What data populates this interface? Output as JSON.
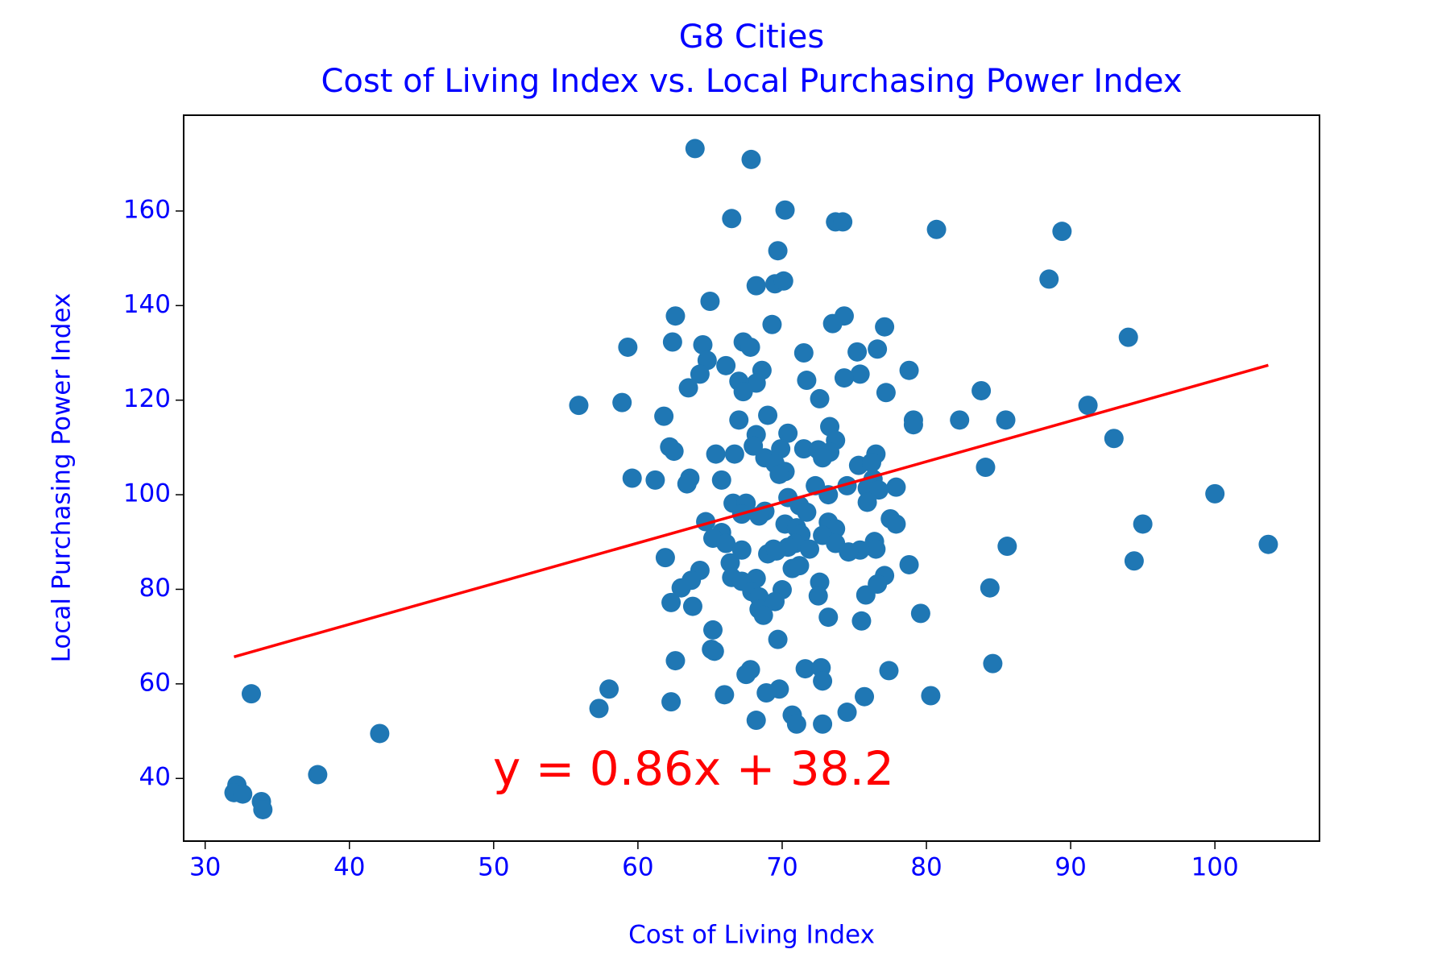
{
  "chart_data": {
    "type": "scatter",
    "title": "G8 Cities",
    "subtitle": "Cost of Living Index vs. Local Purchasing Power Index",
    "x_label": "Cost of Living Index",
    "y_label": "Local Purchasing Power Index",
    "color": "#1f77b4",
    "text_color": "blue",
    "x": [
      63.96,
      67.85,
      66.5,
      70.2,
      73.7,
      74.2,
      80.7,
      89.4,
      69.7,
      68.2,
      69.5,
      70.1,
      88.5,
      65.0,
      62.6,
      74.3,
      73.5,
      69.3,
      77.1,
      94.0,
      62.4,
      64.5,
      67.3,
      67.8,
      59.3,
      75.2,
      75.4,
      76.6,
      71.5,
      64.8,
      64.3,
      66.1,
      78.8,
      68.6,
      68.2,
      67.0,
      71.7,
      74.3,
      63.5,
      67.3,
      77.2,
      83.8,
      72.6,
      55.9,
      58.9,
      91.2,
      61.8,
      69.0,
      67.0,
      82.3,
      85.5,
      79.1,
      79.1,
      73.3,
      70.4,
      68.2,
      93.0,
      73.7,
      62.2,
      62.5,
      68.0,
      71.5,
      72.5,
      73.3,
      69.9,
      65.4,
      66.7,
      72.8,
      76.5,
      68.8,
      69.5,
      75.3,
      76.2,
      84.1,
      70.2,
      69.8,
      59.6,
      61.2,
      63.6,
      63.4,
      65.8,
      76.3,
      74.5,
      75.9,
      77.9,
      76.7,
      73.2,
      72.3,
      100.0,
      70.4,
      71.2,
      71.7,
      66.6,
      67.5,
      75.9,
      68.8,
      67.2,
      68.4,
      64.7,
      77.5,
      77.9,
      73.2,
      73.7,
      70.2,
      71.0,
      95.0,
      65.8,
      65.2,
      66.1,
      71.3,
      70.9,
      72.8,
      73.7,
      76.4,
      76.5,
      75.4,
      69.4,
      70.4,
      85.6,
      103.7,
      67.2,
      71.9,
      74.6,
      69.0,
      69.6,
      61.9,
      94.4,
      66.4,
      78.8,
      70.7,
      71.2,
      64.3,
      63.7,
      68.2,
      66.5,
      67.2,
      72.6,
      77.1,
      76.6,
      63.0,
      84.4,
      70.0,
      67.9,
      68.4,
      72.5,
      75.8,
      62.3,
      69.5,
      63.8,
      68.4,
      68.7,
      79.6,
      73.2,
      75.5,
      65.2,
      69.7,
      65.1,
      65.3,
      62.6,
      84.6,
      67.8,
      67.5,
      71.6,
      72.7,
      77.4,
      72.8,
      58.0,
      33.2,
      69.8,
      68.9,
      66.0,
      75.7,
      80.3,
      62.3,
      57.3,
      74.5,
      70.7,
      71.0,
      68.2,
      72.8,
      42.1,
      37.8,
      32.2,
      32.0,
      32.6,
      33.9,
      34.0
    ],
    "values": [
      173.2,
      170.9,
      158.4,
      160.2,
      157.7,
      157.7,
      156.1,
      155.7,
      151.6,
      144.2,
      144.6,
      145.2,
      145.6,
      140.9,
      137.8,
      137.8,
      136.2,
      136.0,
      135.5,
      133.3,
      132.3,
      131.7,
      132.3,
      131.2,
      131.2,
      130.2,
      125.5,
      130.8,
      130.0,
      128.4,
      125.5,
      127.3,
      126.3,
      126.3,
      123.6,
      124.0,
      124.2,
      124.7,
      122.6,
      121.8,
      121.6,
      122.0,
      120.3,
      118.9,
      119.5,
      118.9,
      116.6,
      116.8,
      115.8,
      115.8,
      115.8,
      115.8,
      114.8,
      114.4,
      113.0,
      112.7,
      111.9,
      111.5,
      110.1,
      109.2,
      110.3,
      109.7,
      109.5,
      109.0,
      109.7,
      108.6,
      108.6,
      107.8,
      108.6,
      107.8,
      106.6,
      106.2,
      106.8,
      105.8,
      104.9,
      104.3,
      103.5,
      103.1,
      103.5,
      102.3,
      103.1,
      103.3,
      101.9,
      101.4,
      101.6,
      101.0,
      100.0,
      101.9,
      100.2,
      99.4,
      97.7,
      96.3,
      98.2,
      98.2,
      98.4,
      96.5,
      95.9,
      95.5,
      94.3,
      94.9,
      93.8,
      94.2,
      92.8,
      93.8,
      93.0,
      93.8,
      92.0,
      90.8,
      89.7,
      91.6,
      89.7,
      91.4,
      89.7,
      90.1,
      88.5,
      88.3,
      88.5,
      88.9,
      89.1,
      89.5,
      88.3,
      88.5,
      87.9,
      87.5,
      88.1,
      86.7,
      86.0,
      85.6,
      85.2,
      84.4,
      85.0,
      84.0,
      81.9,
      82.3,
      82.5,
      81.7,
      81.5,
      82.9,
      81.1,
      80.3,
      80.3,
      79.9,
      79.5,
      78.4,
      78.6,
      78.8,
      77.2,
      77.4,
      76.4,
      75.8,
      74.5,
      74.9,
      74.1,
      73.3,
      71.4,
      69.4,
      67.3,
      66.9,
      64.9,
      64.3,
      63.0,
      62.0,
      63.2,
      63.4,
      62.8,
      60.6,
      58.9,
      57.9,
      58.9,
      58.1,
      57.7,
      57.3,
      57.5,
      56.2,
      54.8,
      54.0,
      53.4,
      51.5,
      52.3,
      51.5,
      49.5,
      40.8,
      38.6,
      37.0,
      36.7,
      35.1,
      33.4
    ],
    "fit": {
      "x": [
        32,
        103.7
      ],
      "values": [
        65.72,
        127.38
      ],
      "color": "red"
    },
    "annotation": "y = 0.86x + 38.2",
    "annotation_color": "red",
    "xlim": [
      28.51,
      107.25
    ],
    "xticks": [
      30,
      40,
      50,
      60,
      70,
      80,
      90,
      100
    ],
    "ylim": [
      26.75,
      180.26
    ],
    "yticks": [
      40,
      60,
      80,
      100,
      120,
      140,
      160
    ]
  }
}
